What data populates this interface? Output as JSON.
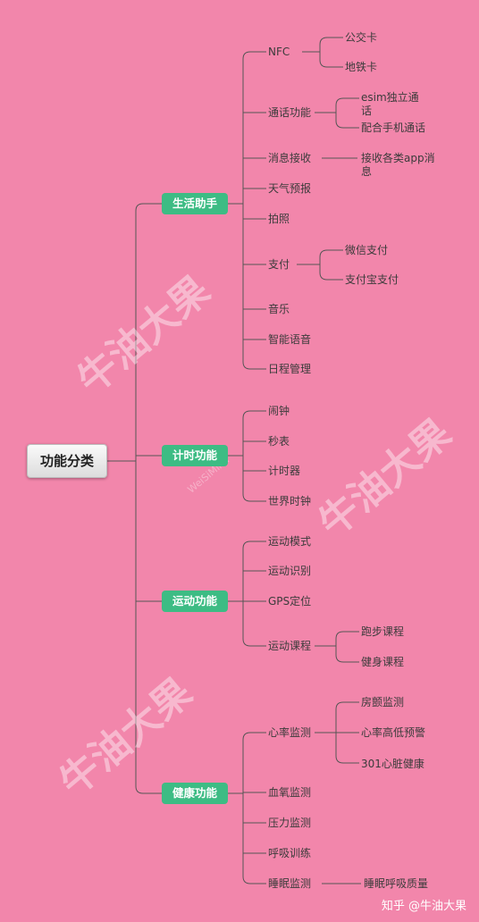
{
  "root": "功能分类",
  "categories": {
    "life": "生活助手",
    "timer": "计时功能",
    "sport": "运动功能",
    "health": "健康功能"
  },
  "life": {
    "nfc": "NFC",
    "bus_card": "公交卡",
    "metro_card": "地铁卡",
    "call": "通话功能",
    "esim": "esim独立通话",
    "phone_pair": "配合手机通话",
    "msg": "消息接收",
    "msg_detail": "接收各类app消息",
    "weather": "天气预报",
    "photo": "拍照",
    "pay": "支付",
    "wechat_pay": "微信支付",
    "alipay": "支付宝支付",
    "music": "音乐",
    "voice": "智能语音",
    "schedule": "日程管理"
  },
  "timer": {
    "alarm": "闹钟",
    "stopwatch": "秒表",
    "countdown": "计时器",
    "world_clock": "世界时钟"
  },
  "sport": {
    "mode": "运动模式",
    "recognition": "运动识别",
    "gps": "GPS定位",
    "course": "运动课程",
    "running": "跑步课程",
    "fitness": "健身课程"
  },
  "health": {
    "heart": "心率监测",
    "af": "房颤监测",
    "hr_alert": "心率高低预警",
    "h301": "301心脏健康",
    "spo2": "血氧监测",
    "stress": "压力监测",
    "breath": "呼吸训练",
    "sleep": "睡眠监测",
    "sleep_quality": "睡眠呼吸质量"
  },
  "watermarks": {
    "main": "牛油大果",
    "small": "WeiSiMind"
  },
  "credit": "知乎 @牛油大果",
  "colors": {
    "background": "#f286ab",
    "category": "#3dbc84",
    "line": "#555555"
  }
}
